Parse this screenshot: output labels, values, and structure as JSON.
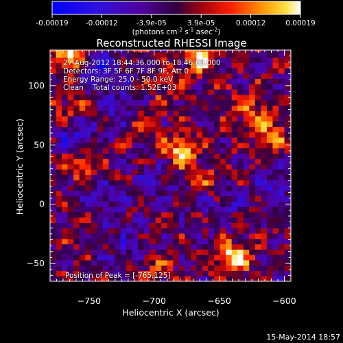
{
  "window": {
    "footer_date": "15-May-2014 18:57"
  },
  "colorbar": {
    "tick_labels": [
      "-0.00019",
      "-0.00012",
      "-3.9e-05",
      "3.9e-05",
      "0.00012",
      "0.00019"
    ],
    "unit_text": "(photons cm",
    "unit_exp1": "-2",
    "unit_mid": " s",
    "unit_exp2": "-1",
    "unit_mid2": " asec",
    "unit_exp3": "-2",
    "unit_end": ")",
    "range": [
      -0.00019,
      0.00019
    ],
    "colors": {
      "neg_low": "#0000ff",
      "neg_mid": "#5000a0",
      "zero": "#300040",
      "pos_mid": "#ff3000",
      "pos_high": "#ffcc20",
      "pos_max": "#ffffff"
    }
  },
  "chart_data": {
    "type": "heatmap",
    "title": "Reconstructed RHESSI Image",
    "xlabel": "Heliocentric X (arcsec)",
    "ylabel": "Heliocentric Y (arcsec)",
    "xlim": [
      -780,
      -595
    ],
    "ylim": [
      -65,
      130
    ],
    "x_ticks": [
      -750,
      -700,
      -650,
      -600
    ],
    "x_tick_labels": [
      "−750",
      "−700",
      "−650",
      "−600"
    ],
    "y_ticks": [
      -50,
      0,
      50,
      100
    ],
    "y_tick_labels": [
      "−50",
      "0",
      "50",
      "100"
    ],
    "annotations": [
      "27-Aug-2012 18:44:36.000 to 18:46:08.000",
      "Detectors: 3F 5F 6F 7F 8F 9F, Att 0",
      "Energy Range: 25.0 - 50.0 keV",
      "Clean    Total counts: 1.52E+03"
    ],
    "peak_label": "Position of Peak = [-765,125]",
    "peak": [
      -765,
      125
    ],
    "bright_sources": [
      {
        "x": -765,
        "y": 125,
        "value": 0.00019
      },
      {
        "x": -665,
        "y": 125,
        "value": 0.00017
      },
      {
        "x": -640,
        "y": -45,
        "value": 0.00018
      },
      {
        "x": -680,
        "y": 45,
        "value": 0.00015
      },
      {
        "x": -755,
        "y": 35,
        "value": 0.00011
      },
      {
        "x": -610,
        "y": 60,
        "value": 0.0001
      },
      {
        "x": -625,
        "y": 80,
        "value": 9e-05
      },
      {
        "x": -710,
        "y": 70,
        "value": 8e-05
      },
      {
        "x": -765,
        "y": 80,
        "value": 8e-05
      },
      {
        "x": -690,
        "y": 100,
        "value": 7e-05
      },
      {
        "x": -660,
        "y": 20,
        "value": 7e-05
      },
      {
        "x": -745,
        "y": -15,
        "value": 6e-05
      },
      {
        "x": -700,
        "y": -50,
        "value": 6e-05
      }
    ],
    "negative_regions": [
      {
        "x": -740,
        "y": 115,
        "value": -0.00012
      },
      {
        "x": -725,
        "y": 80,
        "value": -8e-05
      },
      {
        "x": -760,
        "y": 60,
        "value": -9e-05
      },
      {
        "x": -740,
        "y": -5,
        "value": -8e-05
      },
      {
        "x": -610,
        "y": 15,
        "value": -8e-05
      },
      {
        "x": -700,
        "y": 20,
        "value": -7e-05
      },
      {
        "x": -650,
        "y": 0,
        "value": -6e-05
      },
      {
        "x": -720,
        "y": -35,
        "value": -6e-05
      }
    ]
  }
}
